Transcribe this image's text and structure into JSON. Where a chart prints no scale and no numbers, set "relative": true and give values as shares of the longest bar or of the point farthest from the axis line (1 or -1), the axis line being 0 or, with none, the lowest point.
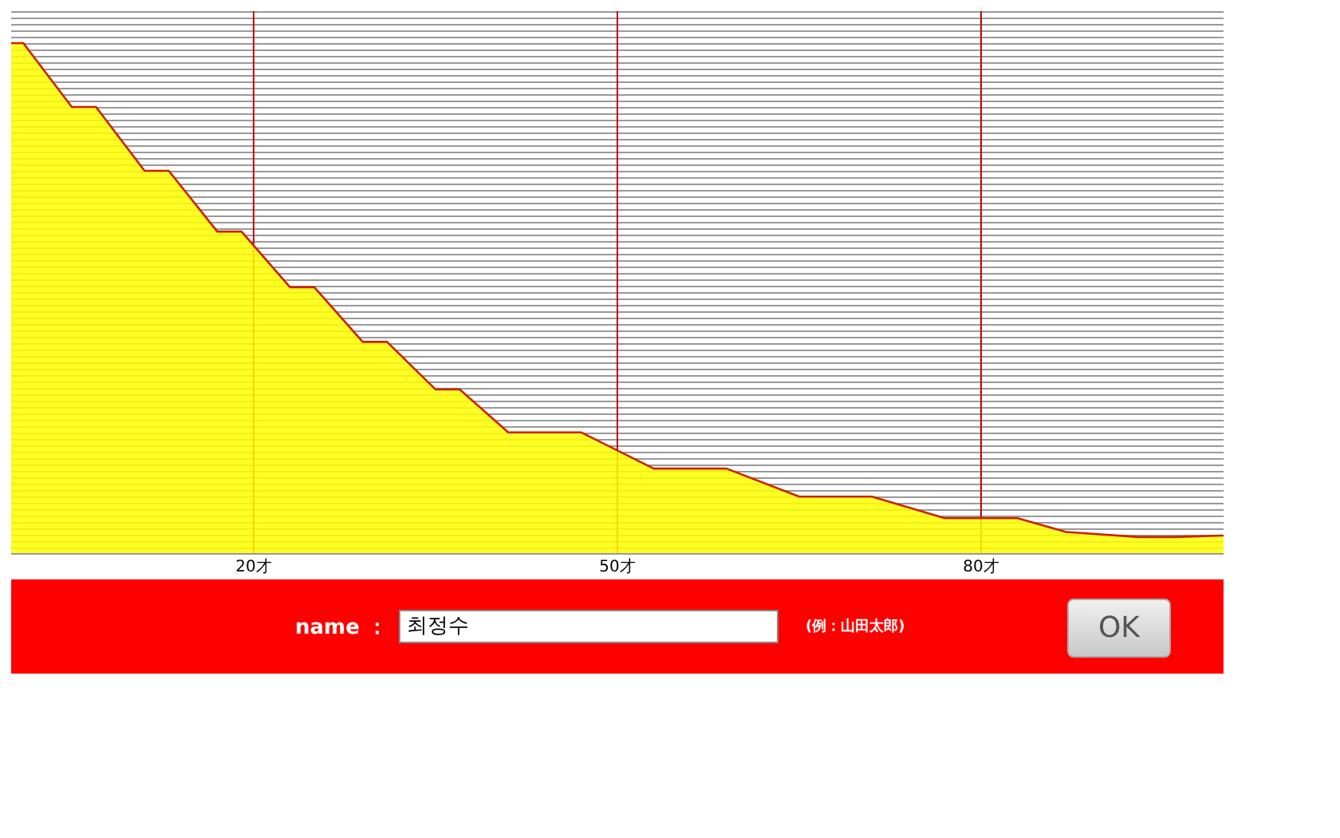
{
  "chart_data": {
    "type": "area",
    "relative": true,
    "x": [
      0,
      1,
      5,
      7,
      11,
      13,
      17,
      19,
      23,
      25,
      29,
      31,
      35,
      37,
      41,
      47,
      53,
      59,
      65,
      71,
      77,
      83,
      87,
      93,
      96,
      100
    ],
    "series": [
      {
        "color": "#ffff00",
        "values": [
          1,
          1,
          0.875,
          0.875,
          0.75,
          0.75,
          0.631,
          0.631,
          0.522,
          0.522,
          0.415,
          0.415,
          0.322,
          0.322,
          0.238,
          0.238,
          0.167,
          0.167,
          0.112,
          0.112,
          0.07,
          0.07,
          0.043,
          0.033,
          0.033,
          0.036
        ]
      }
    ],
    "xlim": [
      0,
      100
    ],
    "xticks": [
      {
        "value": 20,
        "label": "20才"
      },
      {
        "value": 50,
        "label": "50才"
      },
      {
        "value": 80,
        "label": "80才"
      }
    ],
    "grid": "x",
    "annotations": [
      "name ：",
      "최정수",
      "(例：山田太郎)",
      "OK"
    ]
  }
}
